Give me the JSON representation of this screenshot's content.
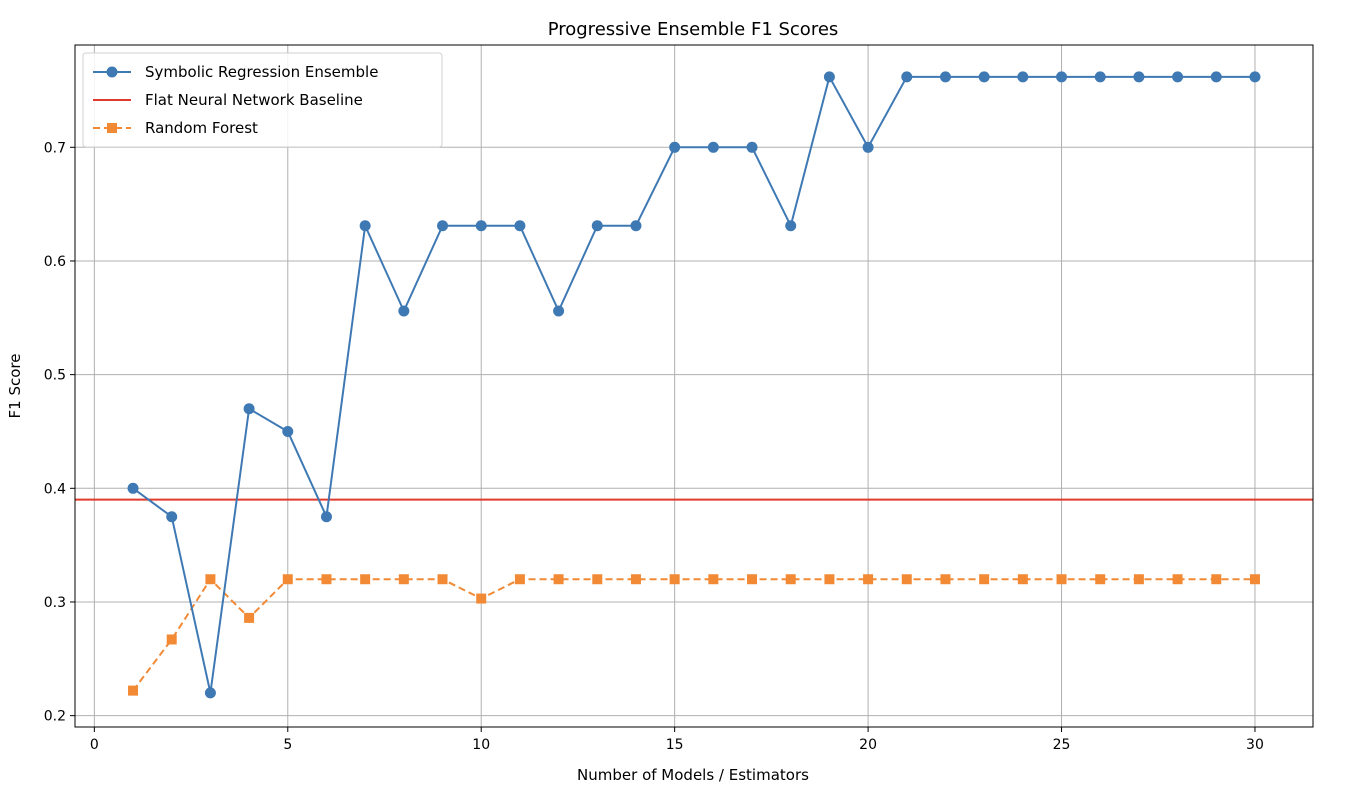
{
  "chart_data": {
    "type": "line",
    "title": "Progressive Ensemble F1 Scores",
    "xlabel": "Number of Models / Estimators",
    "ylabel": "F1 Score",
    "xlim": [
      -0.5,
      31.5
    ],
    "ylim": [
      0.19,
      0.79
    ],
    "xticks": [
      0,
      5,
      10,
      15,
      20,
      25,
      30
    ],
    "xtick_labels": [
      "0",
      "5",
      "10",
      "15",
      "20",
      "25",
      "30"
    ],
    "yticks": [
      0.2,
      0.3,
      0.4,
      0.5,
      0.6,
      0.7
    ],
    "ytick_labels": [
      "0.2",
      "0.3",
      "0.4",
      "0.5",
      "0.6",
      "0.7"
    ],
    "grid": true,
    "legend_position": "upper-left",
    "series": [
      {
        "name": "Symbolic Regression Ensemble",
        "kind": "line",
        "color": "#3f79b4",
        "marker": "circle",
        "linestyle": "solid",
        "x": [
          1,
          2,
          3,
          4,
          5,
          6,
          7,
          8,
          9,
          10,
          11,
          12,
          13,
          14,
          15,
          16,
          17,
          18,
          19,
          20,
          21,
          22,
          23,
          24,
          25,
          26,
          27,
          28,
          29,
          30
        ],
        "values": [
          0.4,
          0.375,
          0.22,
          0.47,
          0.45,
          0.375,
          0.631,
          0.556,
          0.631,
          0.631,
          0.631,
          0.556,
          0.631,
          0.631,
          0.7,
          0.7,
          0.7,
          0.631,
          0.762,
          0.7,
          0.762,
          0.762,
          0.762,
          0.762,
          0.762,
          0.762,
          0.762,
          0.762,
          0.762,
          0.762
        ]
      },
      {
        "name": "Flat Neural Network Baseline",
        "kind": "hline",
        "color": "#e03a2c",
        "marker": "none",
        "linestyle": "solid",
        "value": 0.39
      },
      {
        "name": "Random Forest",
        "kind": "line",
        "color": "#f28a35",
        "marker": "square",
        "linestyle": "dashed",
        "x": [
          1,
          2,
          3,
          4,
          5,
          6,
          7,
          8,
          9,
          10,
          11,
          12,
          13,
          14,
          15,
          16,
          17,
          18,
          19,
          20,
          21,
          22,
          23,
          24,
          25,
          26,
          27,
          28,
          29,
          30
        ],
        "values": [
          0.222,
          0.267,
          0.32,
          0.286,
          0.32,
          0.32,
          0.32,
          0.32,
          0.32,
          0.303,
          0.32,
          0.32,
          0.32,
          0.32,
          0.32,
          0.32,
          0.32,
          0.32,
          0.32,
          0.32,
          0.32,
          0.32,
          0.32,
          0.32,
          0.32,
          0.32,
          0.32,
          0.32,
          0.32,
          0.32
        ]
      }
    ]
  }
}
